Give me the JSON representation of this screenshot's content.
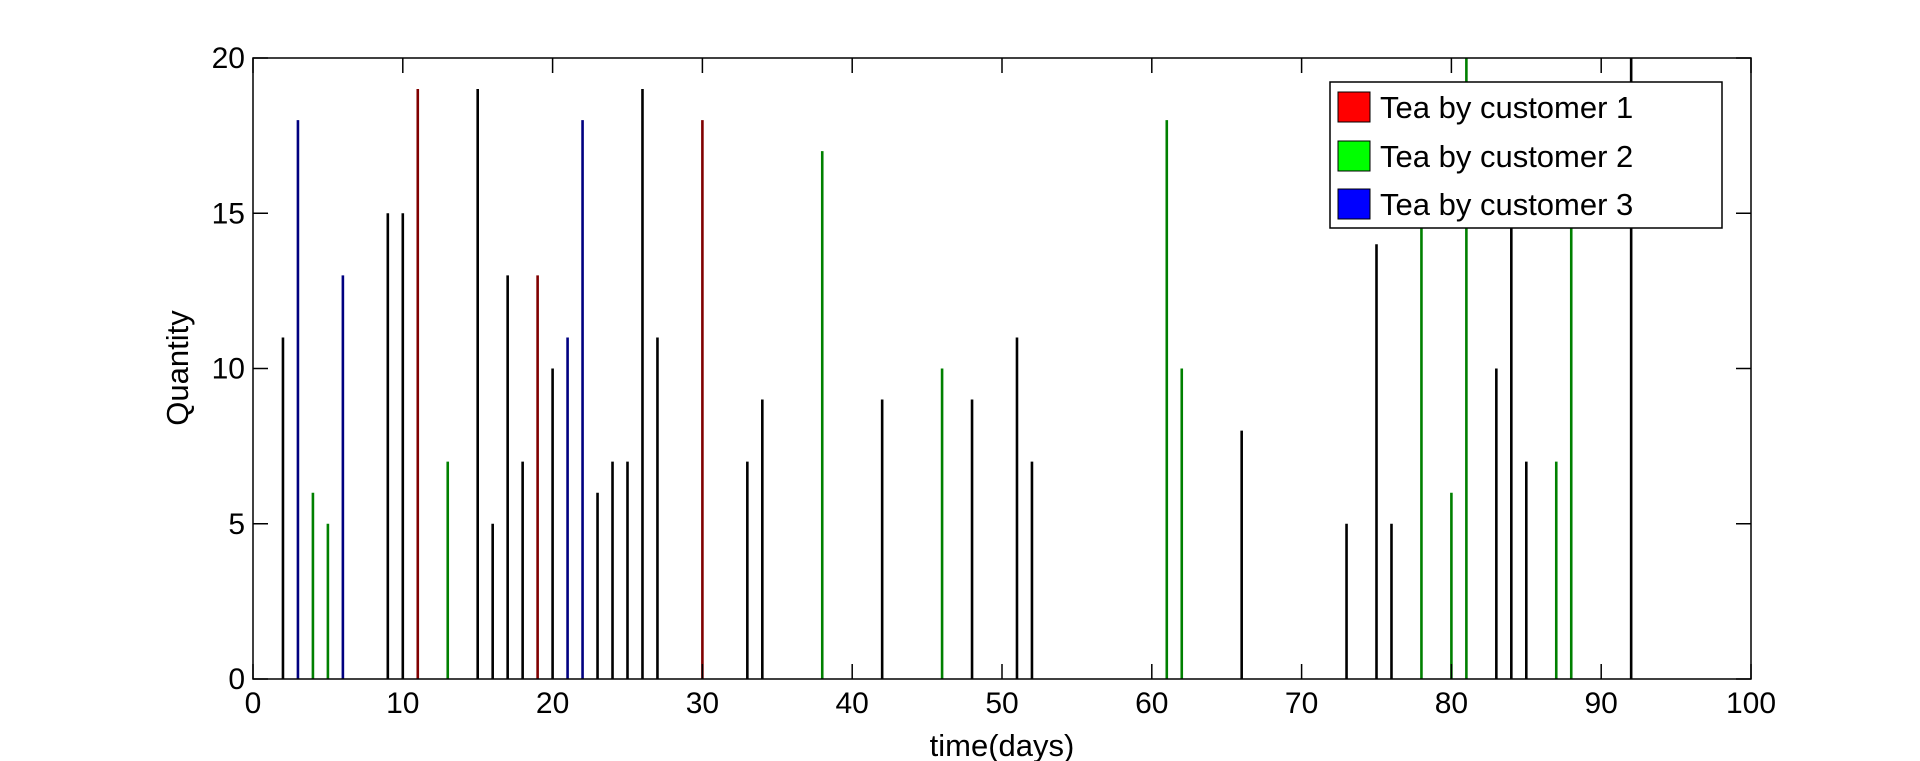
{
  "chart_data": {
    "type": "bar",
    "xlabel": "time(days)",
    "ylabel": "Quantity",
    "xlim": [
      0,
      100
    ],
    "ylim": [
      0,
      20
    ],
    "xticks": [
      0,
      10,
      20,
      30,
      40,
      50,
      60,
      70,
      80,
      90,
      100
    ],
    "yticks": [
      0,
      5,
      10,
      15,
      20
    ],
    "grid": false,
    "legend_position": "top-right",
    "series": [
      {
        "name": "Tea by customer 1",
        "color": "#ff0000",
        "line_color": "#800000",
        "x": [
          11,
          19,
          30
        ],
        "values": [
          19,
          13,
          18
        ]
      },
      {
        "name": "Tea by customer 2",
        "color": "#00ff00",
        "line_color": "#008000",
        "x": [
          4,
          5,
          13,
          38,
          46,
          61,
          62,
          78,
          80,
          81,
          87,
          88
        ],
        "values": [
          6,
          5,
          7,
          17,
          10,
          18,
          10,
          15,
          6,
          20,
          7,
          15
        ]
      },
      {
        "name": "Tea by customer 3",
        "color": "#0000ff",
        "line_color": "#000080",
        "x": [
          3,
          6,
          21,
          22
        ],
        "values": [
          18,
          13,
          11,
          18
        ]
      }
    ],
    "other": {
      "color": "#000000",
      "x": [
        2,
        9,
        10,
        15,
        16,
        17,
        18,
        20,
        23,
        24,
        25,
        26,
        27,
        33,
        34,
        42,
        48,
        51,
        52,
        66,
        73,
        75,
        76,
        83,
        84,
        85,
        92
      ],
      "values": [
        11,
        15,
        15,
        19,
        5,
        13,
        7,
        10,
        6,
        7,
        7,
        19,
        11,
        7,
        9,
        9,
        9,
        11,
        7,
        8,
        5,
        14,
        5,
        10,
        15,
        7,
        20
      ]
    }
  }
}
